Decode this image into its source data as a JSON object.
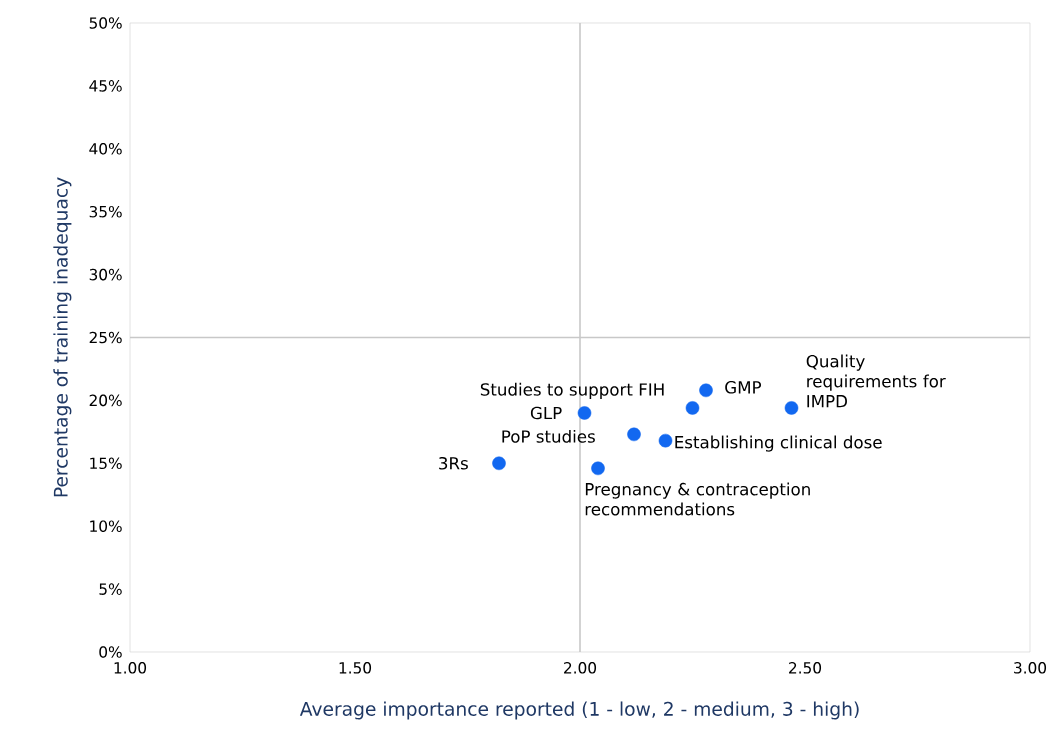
{
  "chart_data": {
    "type": "scatter",
    "xlabel": "Average importance reported (1 - low, 2 - medium, 3 - high)",
    "ylabel": "Percentage of training inadequacy",
    "x": [
      1.82,
      2.01,
      2.12,
      2.19,
      2.04,
      2.25,
      2.28,
      2.47
    ],
    "values": [
      15,
      19,
      17.3,
      16.8,
      14.6,
      19.4,
      20.8,
      19.4
    ],
    "color": "#1268f0",
    "marker": "circle",
    "xlim": [
      1,
      3
    ],
    "ylim": [
      0,
      50
    ],
    "xticks": [
      {
        "value": 1,
        "label": "1.00"
      },
      {
        "value": 1.5,
        "label": "1.50"
      },
      {
        "value": 2,
        "label": "2.00"
      },
      {
        "value": 2.5,
        "label": "2.50"
      },
      {
        "value": 3,
        "label": "3.00"
      }
    ],
    "yticks": [
      {
        "value": 0,
        "label": "0%"
      },
      {
        "value": 5,
        "label": "5%"
      },
      {
        "value": 10,
        "label": "10%"
      },
      {
        "value": 15,
        "label": "15%"
      },
      {
        "value": 20,
        "label": "20%"
      },
      {
        "value": 25,
        "label": "25%"
      },
      {
        "value": 30,
        "label": "30%"
      },
      {
        "value": 35,
        "label": "35%"
      },
      {
        "value": 40,
        "label": "40%"
      },
      {
        "value": 45,
        "label": "45%"
      },
      {
        "value": 50,
        "label": "50%"
      }
    ],
    "grid": false,
    "ref_lines": [
      {
        "axis": "x",
        "value": 2,
        "color": "#c8c8c8"
      },
      {
        "axis": "y",
        "value": 25,
        "color": "#c8c8c8"
      }
    ],
    "annotations": [
      {
        "text": "3Rs",
        "x": 1.82,
        "y": 15
      },
      {
        "text": "GLP",
        "x": 2.01,
        "y": 19
      },
      {
        "text": "PoP studies",
        "x": 2.12,
        "y": 17.3
      },
      {
        "text": "Establishing clinical dose",
        "x": 2.19,
        "y": 16.8
      },
      {
        "text": "Pregnancy & contraception recommendations",
        "x": 2.04,
        "y": 14.6
      },
      {
        "text": "Studies to support FIH",
        "x": 2.25,
        "y": 19.4
      },
      {
        "text": "GMP",
        "x": 2.28,
        "y": 20.8
      },
      {
        "text": "Quality requirements for IMPD",
        "x": 2.47,
        "y": 19.4
      }
    ]
  }
}
